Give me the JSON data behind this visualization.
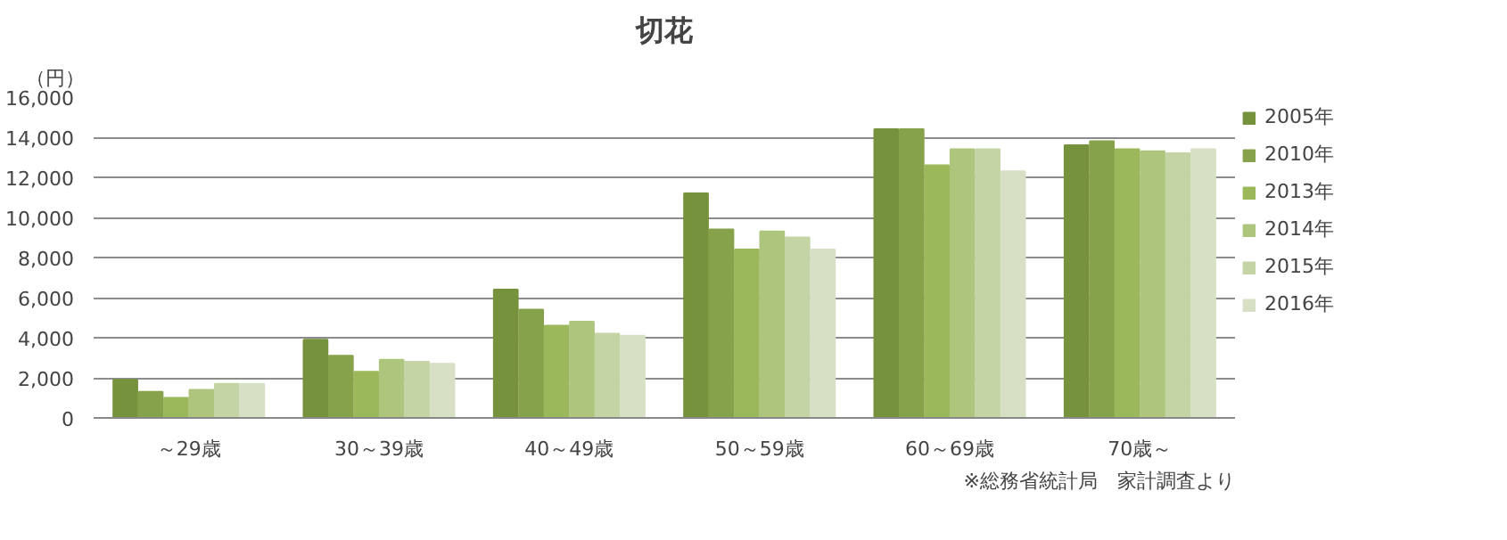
{
  "chart_data": {
    "type": "bar",
    "title": "切花",
    "ylabel": "（円）",
    "annotations": [
      "※総務省統計局　家計調査より"
    ],
    "categories": [
      "～29歳",
      "30～39歳",
      "40～49歳",
      "50～59歳",
      "60～69歳",
      "70歳～"
    ],
    "series": [
      {
        "name": "2005年",
        "color": "#76923c",
        "values": [
          1900,
          3900,
          6400,
          11200,
          14400,
          13600
        ]
      },
      {
        "name": "2010年",
        "color": "#86a24a",
        "values": [
          1300,
          3100,
          5400,
          9400,
          14400,
          13800
        ]
      },
      {
        "name": "2013年",
        "color": "#9bb85a",
        "values": [
          1000,
          2300,
          4600,
          8400,
          12600,
          13400
        ]
      },
      {
        "name": "2014年",
        "color": "#adc57c",
        "values": [
          1400,
          2900,
          4800,
          9300,
          13400,
          13300
        ]
      },
      {
        "name": "2015年",
        "color": "#c4d4a5",
        "values": [
          1700,
          2800,
          4200,
          9000,
          13400,
          13200
        ]
      },
      {
        "name": "2016年",
        "color": "#d7e0c5",
        "values": [
          1700,
          2700,
          4100,
          8400,
          12300,
          13400
        ]
      }
    ],
    "ylim": [
      0,
      16000
    ],
    "yticks": [
      {
        "value": 0,
        "label": "0"
      },
      {
        "value": 2000,
        "label": "2,000"
      },
      {
        "value": 4000,
        "label": "4,000"
      },
      {
        "value": 6000,
        "label": "6,000"
      },
      {
        "value": 8000,
        "label": "8,000"
      },
      {
        "value": 10000,
        "label": "10,000"
      },
      {
        "value": 12000,
        "label": "12,000"
      },
      {
        "value": 14000,
        "label": "14,000"
      },
      {
        "value": 16000,
        "label": "16,000"
      }
    ],
    "grid": "y",
    "legend": "right"
  }
}
